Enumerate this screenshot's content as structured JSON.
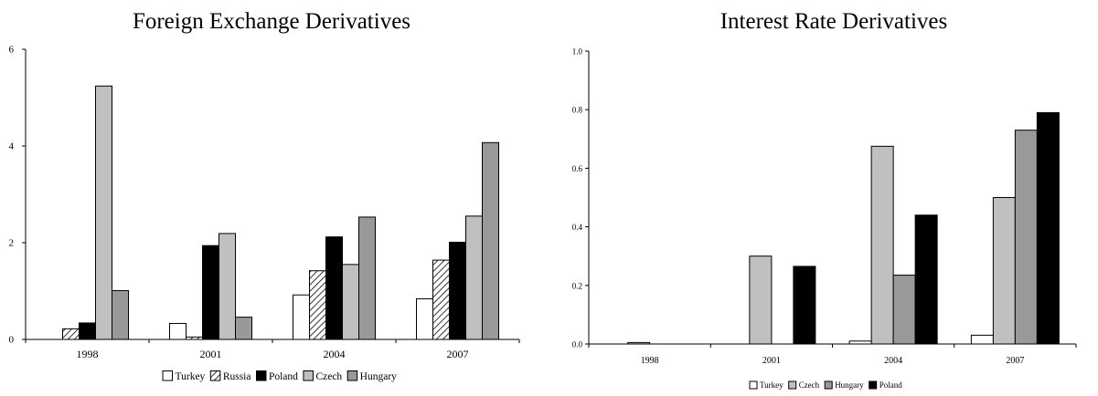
{
  "chart_data": [
    {
      "type": "bar",
      "title": "Foreign Exchange Derivatives",
      "categories": [
        "1998",
        "2001",
        "2004",
        "2007"
      ],
      "ylim": [
        0,
        6
      ],
      "yticks": [
        "0",
        "2",
        "4",
        "6"
      ],
      "legend_position": "bottom",
      "series": [
        {
          "name": "Turkey",
          "fill": "white",
          "color": "#ffffff",
          "values": [
            0,
            0.33,
            0.92,
            0.84
          ]
        },
        {
          "name": "Russia",
          "fill": "hatch",
          "color": "#ffffff",
          "values": [
            0.22,
            0.05,
            1.42,
            1.64
          ]
        },
        {
          "name": "Poland",
          "fill": "solid",
          "color": "#000000",
          "values": [
            0.34,
            1.94,
            2.12,
            2.01
          ]
        },
        {
          "name": "Czech",
          "fill": "solid",
          "color": "#c0c0c0",
          "values": [
            5.24,
            2.19,
            1.55,
            2.55
          ]
        },
        {
          "name": "Hungary",
          "fill": "solid",
          "color": "#999999",
          "values": [
            1.01,
            0.46,
            2.53,
            4.07
          ]
        }
      ]
    },
    {
      "type": "bar",
      "title": "Interest Rate Derivatives",
      "categories": [
        "1998",
        "2001",
        "2004",
        "2007"
      ],
      "ylim": [
        0,
        1.0
      ],
      "yticks": [
        "0.0",
        "0.2",
        "0.4",
        "0.6",
        "0.8",
        "1.0"
      ],
      "legend_position": "bottom",
      "series": [
        {
          "name": "Turkey",
          "fill": "white",
          "color": "#ffffff",
          "values": [
            0,
            0,
            0.01,
            0.03
          ]
        },
        {
          "name": "Czech",
          "fill": "solid",
          "color": "#c0c0c0",
          "values": [
            0.005,
            0.3,
            0.675,
            0.5
          ]
        },
        {
          "name": "Hungary",
          "fill": "solid",
          "color": "#999999",
          "values": [
            0,
            0,
            0.235,
            0.73
          ]
        },
        {
          "name": "Poland",
          "fill": "solid",
          "color": "#000000",
          "values": [
            0,
            0.265,
            0.44,
            0.79
          ]
        }
      ]
    }
  ]
}
